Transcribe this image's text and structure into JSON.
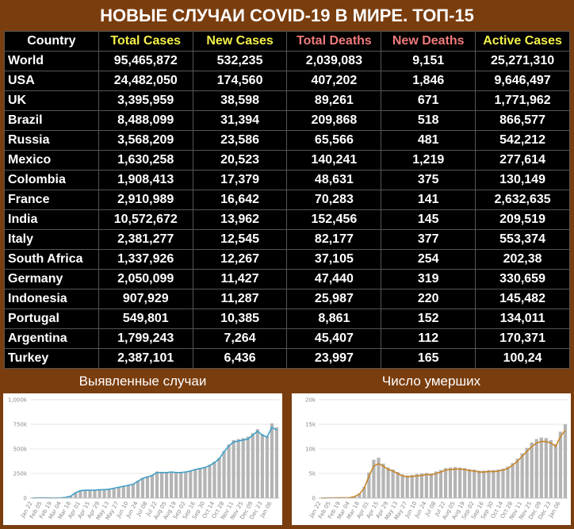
{
  "header": {
    "title": "НОВЫЕ СЛУЧАИ COVID-19 В МИРЕ. ТОП-15"
  },
  "table": {
    "columns": [
      "Country",
      "Total Cases",
      "New Cases",
      "Total Deaths",
      "New Deaths",
      "Active Cases"
    ],
    "rows": [
      [
        "World",
        "95,465,872",
        "532,235",
        "2,039,083",
        "9,151",
        "25,271,310"
      ],
      [
        "USA",
        "24,482,050",
        "174,560",
        "407,202",
        "1,846",
        "9,646,497"
      ],
      [
        "UK",
        "3,395,959",
        "38,598",
        "89,261",
        "671",
        "1,771,962"
      ],
      [
        "Brazil",
        "8,488,099",
        "31,394",
        "209,868",
        "518",
        "866,577"
      ],
      [
        "Russia",
        "3,568,209",
        "23,586",
        "65,566",
        "481",
        "542,212"
      ],
      [
        "Mexico",
        "1,630,258",
        "20,523",
        "140,241",
        "1,219",
        "277,614"
      ],
      [
        "Colombia",
        "1,908,413",
        "17,379",
        "48,631",
        "375",
        "130,149"
      ],
      [
        "France",
        "2,910,989",
        "16,642",
        "70,283",
        "141",
        "2,632,635"
      ],
      [
        "India",
        "10,572,672",
        "13,962",
        "152,456",
        "145",
        "209,519"
      ],
      [
        "Italy",
        "2,381,277",
        "12,545",
        "82,177",
        "377",
        "553,374"
      ],
      [
        "South Africa",
        "1,337,926",
        "12,267",
        "37,105",
        "254",
        "202,38"
      ],
      [
        "Germany",
        "2,050,099",
        "11,427",
        "47,440",
        "319",
        "330,659"
      ],
      [
        "Indonesia",
        "907,929",
        "11,287",
        "25,987",
        "220",
        "145,482"
      ],
      [
        "Portugal",
        "549,801",
        "10,385",
        "8,861",
        "152",
        "134,011"
      ],
      [
        "Argentina",
        "1,799,243",
        "7,264",
        "45,407",
        "112",
        "170,371"
      ],
      [
        "Turkey",
        "2,387,101",
        "6,436",
        "23,997",
        "165",
        "100,24"
      ]
    ]
  },
  "chart_data": [
    {
      "type": "combo",
      "title": "Выявленные случаи",
      "categories": [
        "Jan 22",
        null,
        "Feb 05",
        null,
        "Feb 19",
        null,
        "Mar 04",
        null,
        "Mar 18",
        null,
        "Apr 01",
        null,
        "Apr 15",
        null,
        "Apr 29",
        null,
        "May 13",
        null,
        "May 27",
        null,
        "Jun 10",
        null,
        "Jun 24",
        null,
        "Jul 08",
        null,
        "Jul 22",
        null,
        "Aug 05",
        null,
        "Aug 19",
        null,
        "Sep 02",
        null,
        "Sep 16",
        null,
        "Sep 30",
        null,
        "Oct 14",
        null,
        "Oct 28",
        null,
        "Nov 11",
        null,
        "Nov 25",
        null,
        "Dec 09",
        null,
        "Dec 23",
        null,
        "Jan 06",
        null
      ],
      "series": [
        {
          "type": "bar",
          "color": "#b4b4b4",
          "values": [
            0,
            2000,
            3000,
            5000,
            1000,
            1000,
            3000,
            9000,
            22000,
            58000,
            78000,
            84000,
            82000,
            78000,
            88000,
            84000,
            92000,
            102000,
            112000,
            124000,
            132000,
            145000,
            175000,
            205000,
            220000,
            235000,
            270000,
            265000,
            262000,
            270000,
            258000,
            262000,
            268000,
            280000,
            295000,
            305000,
            318000,
            340000,
            370000,
            410000,
            480000,
            545000,
            590000,
            600000,
            610000,
            625000,
            660000,
            700000,
            650000,
            630000,
            760000,
            720000
          ]
        },
        {
          "type": "line",
          "color": "#3ea0c8",
          "values": [
            0,
            2000,
            3000,
            2000,
            1000,
            1000,
            3000,
            8000,
            20000,
            55000,
            75000,
            80000,
            80000,
            80000,
            85000,
            85000,
            90000,
            100000,
            110000,
            120000,
            130000,
            140000,
            170000,
            200000,
            215000,
            230000,
            260000,
            260000,
            260000,
            265000,
            260000,
            260000,
            265000,
            275000,
            290000,
            300000,
            310000,
            330000,
            360000,
            400000,
            470000,
            530000,
            570000,
            580000,
            590000,
            600000,
            640000,
            680000,
            640000,
            620000,
            720000,
            690000
          ]
        }
      ],
      "ylim": [
        0,
        1000000
      ],
      "yticks": [
        {
          "value": 0,
          "label": "0"
        },
        {
          "value": 250000,
          "label": "250k"
        },
        {
          "value": 500000,
          "label": "500k"
        },
        {
          "value": 750000,
          "label": "750k"
        },
        {
          "value": 1000000,
          "label": "1,000k"
        }
      ],
      "grid": true
    },
    {
      "type": "combo",
      "title": "Число умерших",
      "categories": [
        "Jan 22",
        null,
        "Feb 05",
        null,
        "Feb 19",
        null,
        "Mar 04",
        null,
        "Mar 18",
        null,
        "Apr 01",
        null,
        "Apr 15",
        null,
        "Apr 29",
        null,
        "May 13",
        null,
        "May 27",
        null,
        "Jun 10",
        null,
        "Jun 24",
        null,
        "Jul 08",
        null,
        "Jul 22",
        null,
        "Aug 05",
        null,
        "Aug 19",
        null,
        "Sep 02",
        null,
        "Sep 16",
        null,
        "Sep 30",
        null,
        "Oct 14",
        null,
        "Oct 28",
        null,
        "Nov 11",
        null,
        "Nov 25",
        null,
        "Dec 09",
        null,
        "Dec 23",
        null,
        "Jan 06",
        null
      ],
      "series": [
        {
          "type": "bar",
          "color": "#b4b4b4",
          "values": [
            0,
            20,
            50,
            80,
            100,
            80,
            120,
            350,
            900,
            2300,
            5200,
            7800,
            8200,
            7000,
            6200,
            5800,
            5300,
            4800,
            4600,
            4700,
            4900,
            5000,
            5100,
            5000,
            5400,
            5700,
            6100,
            6200,
            6300,
            6200,
            6100,
            5900,
            5800,
            5600,
            5600,
            5700,
            5700,
            5800,
            6000,
            6400,
            7100,
            8000,
            9100,
            10200,
            11300,
            12000,
            12300,
            12200,
            11800,
            11000,
            13500,
            15000
          ]
        },
        {
          "type": "line",
          "color": "#c8862a",
          "values": [
            0,
            20,
            40,
            60,
            80,
            80,
            100,
            300,
            800,
            2000,
            4500,
            6500,
            7000,
            6500,
            5800,
            5500,
            5000,
            4500,
            4300,
            4400,
            4500,
            4600,
            4800,
            4700,
            5000,
            5300,
            5700,
            5800,
            5900,
            5900,
            5800,
            5600,
            5500,
            5300,
            5300,
            5400,
            5400,
            5500,
            5700,
            6000,
            6700,
            7500,
            8500,
            9500,
            10500,
            11200,
            11500,
            11500,
            11200,
            10500,
            12500,
            13800
          ]
        }
      ],
      "ylim": [
        0,
        20000
      ],
      "yticks": [
        {
          "value": 0,
          "label": "0"
        },
        {
          "value": 5000,
          "label": "5k"
        },
        {
          "value": 10000,
          "label": "10k"
        },
        {
          "value": 15000,
          "label": "15k"
        },
        {
          "value": 20000,
          "label": "20k"
        }
      ],
      "grid": true
    }
  ]
}
